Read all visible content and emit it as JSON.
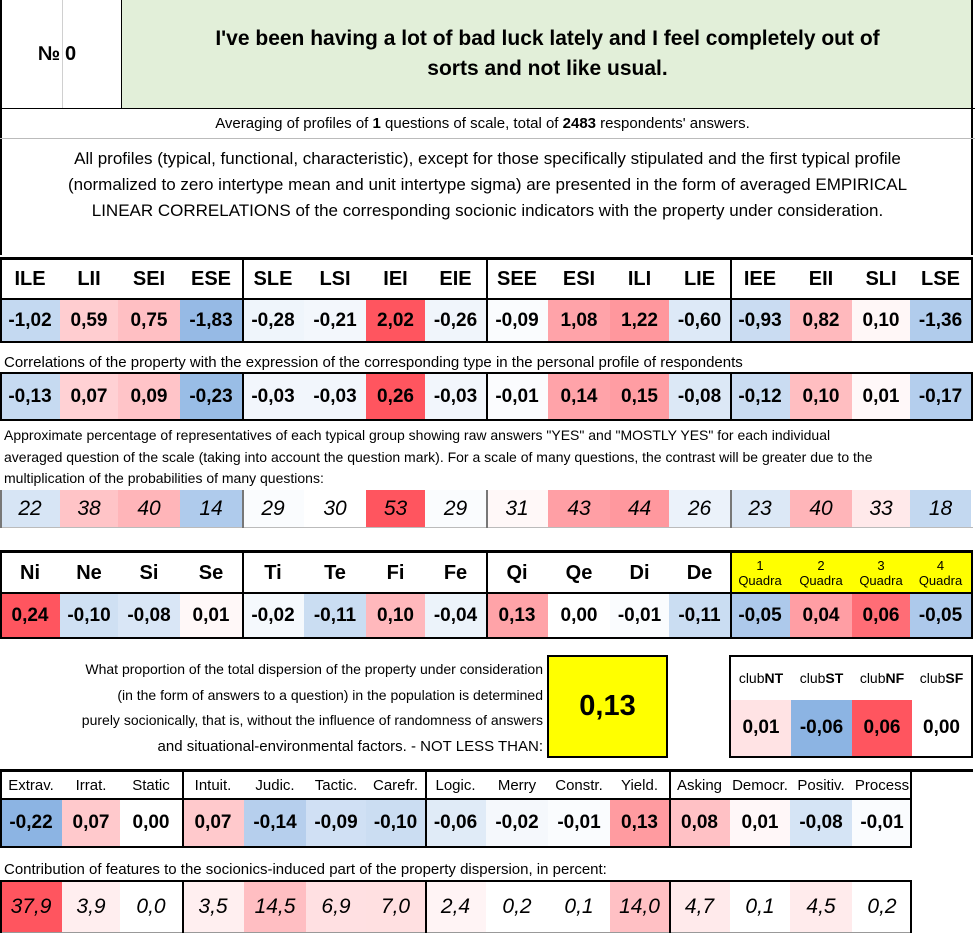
{
  "header": {
    "number_label": "№",
    "number": "0",
    "title_line1": "I've been having a lot of bad luck lately and I feel completely out of",
    "title_line2": "sorts and not like usual."
  },
  "summary": {
    "pre": "Averaging of profiles of ",
    "questions": "1",
    "mid": " questions of scale, total of ",
    "respondents": "2483",
    "post": " respondents' answers."
  },
  "description": {
    "line1": "All profiles (typical, functional, characteristic), except for those specifically stipulated and the first typical profile",
    "line2": "(normalized to zero intertype mean and unit intertype sigma) are presented in the form of averaged EMPIRICAL",
    "line3": "LINEAR CORRELATIONS of the corresponding socionic indicators with the property under consideration."
  },
  "types": {
    "headers": [
      "ILE",
      "LII",
      "SEI",
      "ESE",
      "SLE",
      "LSI",
      "IEI",
      "EIE",
      "SEE",
      "ESI",
      "ILI",
      "LIE",
      "IEE",
      "EII",
      "SLI",
      "LSE"
    ],
    "profile": [
      "-1,02",
      "0,59",
      "0,75",
      "-1,83",
      "-0,28",
      "-0,21",
      "2,02",
      "-0,26",
      "-0,09",
      "1,08",
      "1,22",
      "-0,60",
      "-0,93",
      "0,82",
      "0,10",
      "-1,36"
    ],
    "correlations_note": "Correlations of the property with the expression of the corresponding type in the personal profile of respondents",
    "correlations": [
      "-0,13",
      "0,07",
      "0,09",
      "-0,23",
      "-0,03",
      "-0,03",
      "0,26",
      "-0,03",
      "-0,01",
      "0,14",
      "0,15",
      "-0,08",
      "-0,12",
      "0,10",
      "0,01",
      "-0,17"
    ],
    "percentage_note_line1": "Approximate percentage of representatives of each typical group showing raw answers \"YES\" and \"MOSTLY YES\" for each individual",
    "percentage_note_line2": "averaged question of the scale (taking into account the question mark). For a scale of many questions, the contrast will be greater due to the",
    "percentage_note_line3": "multiplication of the probabilities of many questions:",
    "percentages": [
      "22",
      "38",
      "40",
      "14",
      "29",
      "30",
      "53",
      "29",
      "31",
      "43",
      "44",
      "26",
      "23",
      "40",
      "33",
      "18"
    ]
  },
  "functions": {
    "headers": [
      "Ni",
      "Ne",
      "Si",
      "Se",
      "Ti",
      "Te",
      "Fi",
      "Fe",
      "Qi",
      "Qe",
      "Di",
      "De"
    ],
    "values": [
      "0,24",
      "-0,10",
      "-0,08",
      "0,01",
      "-0,02",
      "-0,11",
      "0,10",
      "-0,04",
      "0,13",
      "0,00",
      "-0,01",
      "-0,11"
    ],
    "quadra_numbers": [
      "1",
      "2",
      "3",
      "4"
    ],
    "quadra_word": "Quadra",
    "quadra_values": [
      "-0,05",
      "0,04",
      "0,06",
      "-0,05"
    ]
  },
  "dispersion": {
    "line1": "What proportion of the total dispersion of the property under consideration",
    "line2": "(in the form of answers to a question) in the population is determined",
    "line3": "purely socionically, that is, without the influence of randomness of answers",
    "line4": "and situational-environmental factors. - NOT LESS THAN:",
    "value": "0,13"
  },
  "clubs": {
    "prefix": "club",
    "names": [
      "NT",
      "ST",
      "NF",
      "SF"
    ],
    "values": [
      "0,01",
      "-0,06",
      "0,06",
      "0,00"
    ]
  },
  "traits": {
    "headers": [
      "Extrav.",
      "Irrat.",
      "Static",
      "Intuit.",
      "Judic.",
      "Tactic.",
      "Carefr.",
      "Logic.",
      "Merry",
      "Constr.",
      "Yield.",
      "Asking",
      "Democr.",
      "Positiv.",
      "Process"
    ],
    "values": [
      "-0,22",
      "0,07",
      "0,00",
      "0,07",
      "-0,14",
      "-0,09",
      "-0,10",
      "-0,06",
      "-0,02",
      "-0,01",
      "0,13",
      "0,08",
      "0,01",
      "-0,08",
      "-0,01"
    ],
    "contribution_note": "Contribution of features to the socionics-induced part of the property dispersion, in percent:",
    "contributions": [
      "37,9",
      "3,9",
      "0,0",
      "3,5",
      "14,5",
      "6,9",
      "7,0",
      "2,4",
      "0,2",
      "0,1",
      "14,0",
      "4,7",
      "0,1",
      "4,5",
      "0,2"
    ]
  },
  "colors": {
    "title_bg": "#e2efd9",
    "yellow": "#ffff00",
    "blue_strong": "#8eb4e3",
    "red_strong": "#f0595f"
  }
}
